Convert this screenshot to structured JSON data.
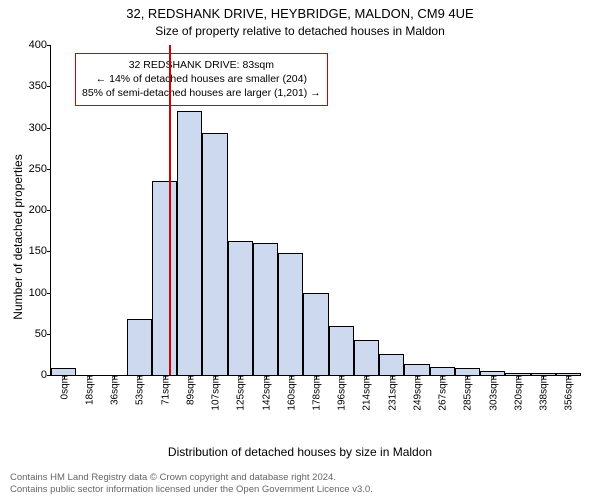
{
  "title": "32, REDSHANK DRIVE, HEYBRIDGE, MALDON, CM9 4UE",
  "subtitle": "Size of property relative to detached houses in Maldon",
  "ylabel": "Number of detached properties",
  "xlabel": "Distribution of detached houses by size in Maldon",
  "footer_line1": "Contains HM Land Registry data © Crown copyright and database right 2024.",
  "footer_line2": "Contains public sector information licensed under the Open Government Licence v3.0.",
  "chart": {
    "type": "histogram",
    "ylim": [
      0,
      400
    ],
    "ytick_step": 50,
    "x_categories": [
      "0sqm",
      "18sqm",
      "36sqm",
      "53sqm",
      "71sqm",
      "89sqm",
      "107sqm",
      "125sqm",
      "142sqm",
      "160sqm",
      "178sqm",
      "196sqm",
      "214sqm",
      "231sqm",
      "249sqm",
      "267sqm",
      "285sqm",
      "303sqm",
      "320sqm",
      "338sqm",
      "356sqm"
    ],
    "values": [
      8,
      0,
      0,
      68,
      235,
      320,
      293,
      163,
      160,
      148,
      100,
      60,
      43,
      25,
      13,
      10,
      8,
      5,
      3,
      3,
      2
    ],
    "bar_fill": "#cdd9ef",
    "bar_stroke": "#000000",
    "background": "#ffffff",
    "axis_color": "#000000",
    "tick_fontsize": 10,
    "label_fontsize": 12,
    "title_fontsize": 13
  },
  "marker": {
    "fractional_index": 4.67,
    "color": "#d40000"
  },
  "annotation": {
    "line1": "32 REDSHANK DRIVE: 83sqm",
    "line2": "← 14% of detached houses are smaller (204)",
    "line3": "85% of semi-detached houses are larger (1,201) →",
    "border_color": "#d40000",
    "text_color": "#000000"
  }
}
